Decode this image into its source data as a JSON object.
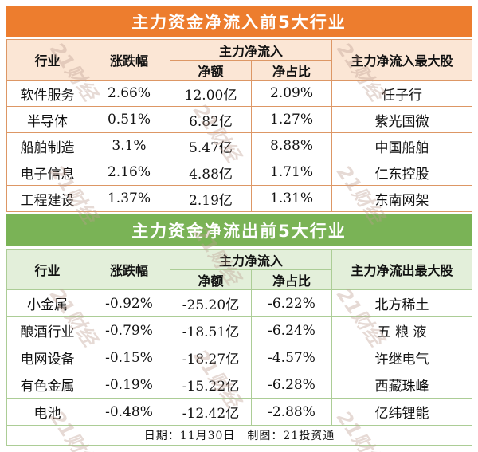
{
  "colors": {
    "orange": "#ED7D2E",
    "orange_light": "#FBE6D5",
    "orange_border": "#DD9765",
    "green": "#7AB356",
    "green_light": "#E3EFDA",
    "green_border": "#ACCD96",
    "text": "#111111"
  },
  "watermark": {
    "text": "21财经"
  },
  "chart_data": [
    {
      "type": "table",
      "title": "主力资金净流入前5大行业",
      "header": {
        "industry": "行业",
        "change": "涨跌幅",
        "group": "主力净流入",
        "net": "净额",
        "ratio": "净占比",
        "top_stock": "主力净流入最大股"
      },
      "rows": [
        [
          "软件服务",
          "2.66%",
          "12.00亿",
          "2.09%",
          "任子行"
        ],
        [
          "半导体",
          "0.51%",
          "6.82亿",
          "1.27%",
          "紫光国微"
        ],
        [
          "船舶制造",
          "3.1%",
          "5.47亿",
          "8.88%",
          "中国船舶"
        ],
        [
          "电子信息",
          "2.16%",
          "4.88亿",
          "1.71%",
          "仁东控股"
        ],
        [
          "工程建设",
          "1.37%",
          "2.19亿",
          "1.31%",
          "东南网架"
        ]
      ]
    },
    {
      "type": "table",
      "title": "主力资金净流出前5大行业",
      "header": {
        "industry": "行业",
        "change": "涨跌幅",
        "group": "主力净流入",
        "net": "净额",
        "ratio": "净占比",
        "top_stock": "主力净流出最大股"
      },
      "rows": [
        [
          "小金属",
          "-0.92%",
          "-25.20亿",
          "-6.22%",
          "北方稀土"
        ],
        [
          "酿酒行业",
          "-0.79%",
          "-18.51亿",
          "-6.24%",
          "五 粮 液"
        ],
        [
          "电网设备",
          "-0.15%",
          "-18.27亿",
          "-4.57%",
          "许继电气"
        ],
        [
          "有色金属",
          "-0.19%",
          "-15.22亿",
          "-6.28%",
          "西藏珠峰"
        ],
        [
          "电池",
          "-0.48%",
          "-12.42亿",
          "-2.88%",
          "亿纬锂能"
        ]
      ]
    }
  ],
  "footer": {
    "text": "日期：11月30日　制图：21投资通"
  }
}
